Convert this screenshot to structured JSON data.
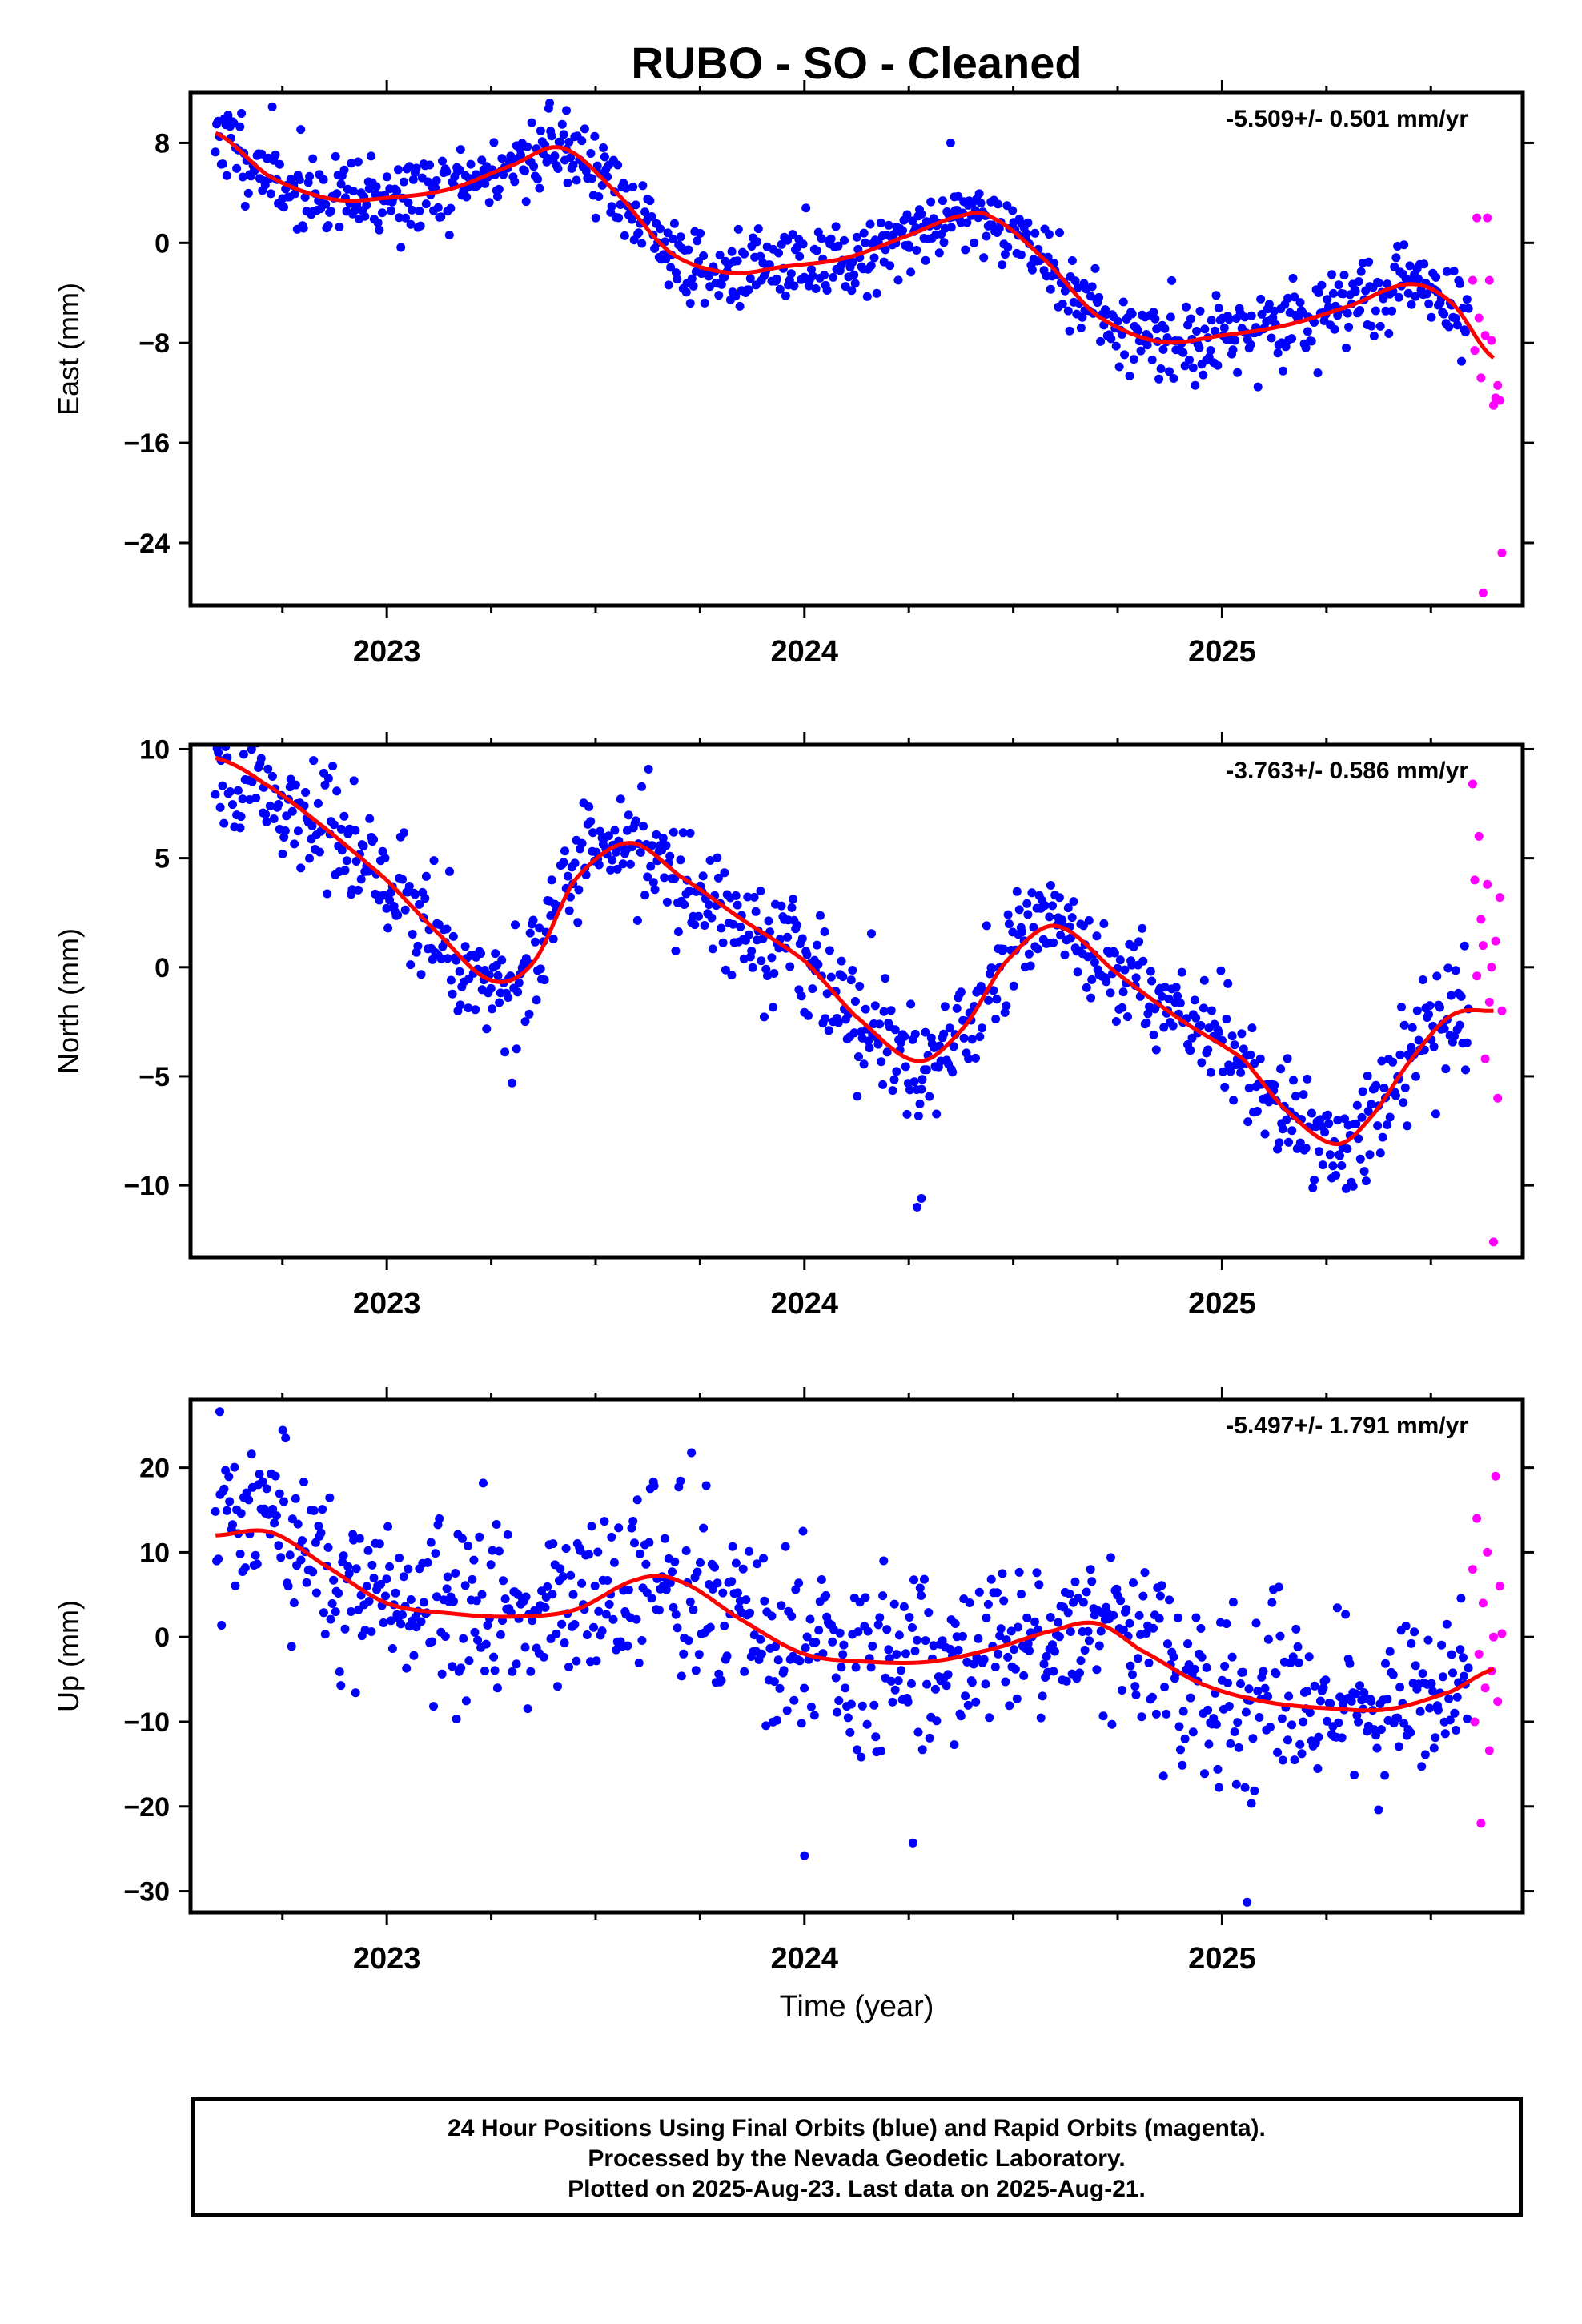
{
  "title": "RUBO  - SO - Cleaned",
  "footer": {
    "line1": "24 Hour Positions Using Final Orbits (blue) and Rapid Orbits (magenta).",
    "line2": "Processed by the Nevada Geodetic Laboratory.",
    "line3": "Plotted on 2025-Aug-23. Last data on 2025-Aug-21."
  },
  "colors": {
    "final_orbits": "#0000ff",
    "rapid_orbits": "#ff00ff",
    "model_fit": "#ff0000",
    "frame": "#000000"
  },
  "chart_data": [
    {
      "type": "scatter",
      "component": "east",
      "ylabel": "East (mm)",
      "xlabel": "",
      "rate_label": "-5.509+/- 0.501 mm/yr",
      "xlim": [
        2022.53,
        2025.72
      ],
      "ylim": [
        -29,
        12
      ],
      "yticks": [
        8,
        0,
        -8,
        -16,
        -24
      ],
      "ytick_labels": [
        "8",
        "0",
        "−8",
        "−16",
        "−24"
      ],
      "xticks": [
        2023,
        2024,
        2025
      ],
      "xtick_labels": [
        "2023",
        "2024",
        "2025"
      ],
      "grid": false,
      "fit_knots": {
        "x": [
          2022.59,
          2022.72,
          2022.87,
          2023.0,
          2023.15,
          2023.3,
          2023.42,
          2023.55,
          2023.68,
          2023.82,
          2023.95,
          2024.1,
          2024.25,
          2024.38,
          2024.45,
          2024.58,
          2024.7,
          2024.85,
          2025.0,
          2025.15,
          2025.3,
          2025.45,
          2025.55,
          2025.65
        ],
        "y": [
          8.8,
          5.3,
          3.5,
          3.6,
          4.3,
          6.2,
          7.6,
          4.0,
          -0.8,
          -2.4,
          -1.9,
          -1.2,
          0.6,
          2.2,
          2.0,
          -1.5,
          -5.8,
          -7.9,
          -7.4,
          -6.6,
          -5.1,
          -3.3,
          -4.8,
          -9.2
        ]
      },
      "series": [
        {
          "name": "Final Orbits",
          "seed": 11,
          "range": [
            2022.59,
            2025.59
          ],
          "n": 880,
          "scatter": 1.6,
          "jump": [],
          "outliers_x": [
            2023.39,
            2023.43,
            2024.35
          ],
          "outliers_y": [
            11.2,
            10.6,
            8.0
          ]
        },
        {
          "name": "Rapid Orbits",
          "x": [
            2025.6,
            2025.605,
            2025.61,
            2025.615,
            2025.62,
            2025.625,
            2025.63,
            2025.635,
            2025.64,
            2025.645,
            2025.65,
            2025.655,
            2025.66,
            2025.665,
            2025.67
          ],
          "y": [
            -3.0,
            -8.6,
            2.0,
            -6.0,
            -10.8,
            -28.0,
            -7.4,
            2.0,
            -3.0,
            -7.8,
            -13.0,
            -12.4,
            -11.4,
            -12.6,
            -24.8
          ]
        }
      ]
    },
    {
      "type": "scatter",
      "component": "north",
      "ylabel": "North (mm)",
      "xlabel": "",
      "rate_label": "-3.763+/- 0.586 mm/yr",
      "xlim": [
        2022.53,
        2025.72
      ],
      "ylim": [
        -13.3,
        10.2
      ],
      "yticks": [
        10,
        5,
        0,
        -5,
        -10
      ],
      "ytick_labels": [
        "10",
        "5",
        "0",
        "−5",
        "−10"
      ],
      "xticks": [
        2023,
        2024,
        2025
      ],
      "xtick_labels": [
        "2023",
        "2024",
        "2025"
      ],
      "grid": false,
      "fit_knots": {
        "x": [
          2022.59,
          2022.7,
          2022.85,
          2023.0,
          2023.12,
          2023.25,
          2023.35,
          2023.45,
          2023.58,
          2023.7,
          2023.85,
          2024.0,
          2024.12,
          2024.27,
          2024.38,
          2024.48,
          2024.6,
          2024.75,
          2024.9,
          2025.05,
          2025.15,
          2025.27,
          2025.35,
          2025.45,
          2025.55,
          2025.65
        ],
        "y": [
          9.6,
          8.5,
          6.4,
          4.0,
          1.6,
          -0.6,
          0.2,
          4.0,
          5.7,
          4.2,
          2.2,
          0.3,
          -2.2,
          -4.3,
          -2.8,
          0.2,
          1.9,
          -0.3,
          -2.4,
          -4.2,
          -6.5,
          -8.1,
          -7.0,
          -4.3,
          -2.2,
          -2.0
        ]
      },
      "series": [
        {
          "name": "Final Orbits",
          "seed": 23,
          "range": [
            2022.59,
            2025.59
          ],
          "n": 880,
          "scatter": 1.3,
          "jump": [],
          "outliers_x": [
            2024.27,
            2024.28
          ],
          "outliers_y": [
            -11.0,
            -10.6
          ]
        },
        {
          "name": "Rapid Orbits",
          "x": [
            2025.6,
            2025.605,
            2025.61,
            2025.615,
            2025.62,
            2025.625,
            2025.63,
            2025.635,
            2025.64,
            2025.645,
            2025.65,
            2025.655,
            2025.66,
            2025.665,
            2025.67
          ],
          "y": [
            8.4,
            4.0,
            -0.4,
            6.0,
            2.2,
            1.0,
            -4.2,
            3.8,
            -1.6,
            0.0,
            -12.6,
            1.2,
            -6.0,
            3.2,
            -2.0
          ]
        }
      ]
    },
    {
      "type": "scatter",
      "component": "up",
      "ylabel": "Up (mm)",
      "xlabel": "Time (year)",
      "rate_label": "-5.497+/- 1.791 mm/yr",
      "xlim": [
        2022.53,
        2025.72
      ],
      "ylim": [
        -32.5,
        28
      ],
      "yticks": [
        20,
        10,
        0,
        -10,
        -20,
        -30
      ],
      "ytick_labels": [
        "20",
        "10",
        "0",
        "−10",
        "−20",
        "−30"
      ],
      "xticks": [
        2023,
        2024,
        2025
      ],
      "xtick_labels": [
        "2023",
        "2024",
        "2025"
      ],
      "grid": false,
      "fit_knots": {
        "x": [
          2022.59,
          2022.72,
          2022.85,
          2023.0,
          2023.15,
          2023.3,
          2023.45,
          2023.6,
          2023.7,
          2023.85,
          2024.0,
          2024.15,
          2024.3,
          2024.45,
          2024.6,
          2024.7,
          2024.8,
          2024.95,
          2025.1,
          2025.25,
          2025.4,
          2025.55,
          2025.65
        ],
        "y": [
          12.0,
          12.4,
          8.5,
          4.0,
          2.8,
          2.4,
          3.2,
          6.8,
          6.6,
          2.0,
          -2.0,
          -2.9,
          -2.9,
          -1.4,
          0.8,
          1.6,
          -1.4,
          -5.5,
          -7.6,
          -8.4,
          -8.5,
          -6.4,
          -3.8
        ]
      },
      "series": [
        {
          "name": "Final Orbits",
          "seed": 37,
          "range": [
            2022.59,
            2025.59
          ],
          "n": 880,
          "scatter": 5.2,
          "jump": [],
          "outliers_x": [
            2024.0,
            2024.26,
            2025.06,
            2022.6
          ],
          "outliers_y": [
            -25.8,
            -24.3,
            -31.3,
            26.6
          ]
        },
        {
          "name": "Rapid Orbits",
          "x": [
            2025.6,
            2025.605,
            2025.61,
            2025.615,
            2025.62,
            2025.625,
            2025.63,
            2025.635,
            2025.64,
            2025.645,
            2025.65,
            2025.655,
            2025.66,
            2025.665,
            2025.67
          ],
          "y": [
            8.0,
            -10.0,
            14.0,
            -2.0,
            -22.0,
            4.0,
            -6.0,
            10.0,
            -13.4,
            -4.0,
            0.0,
            19.0,
            -7.6,
            6.0,
            0.4
          ]
        }
      ]
    }
  ]
}
